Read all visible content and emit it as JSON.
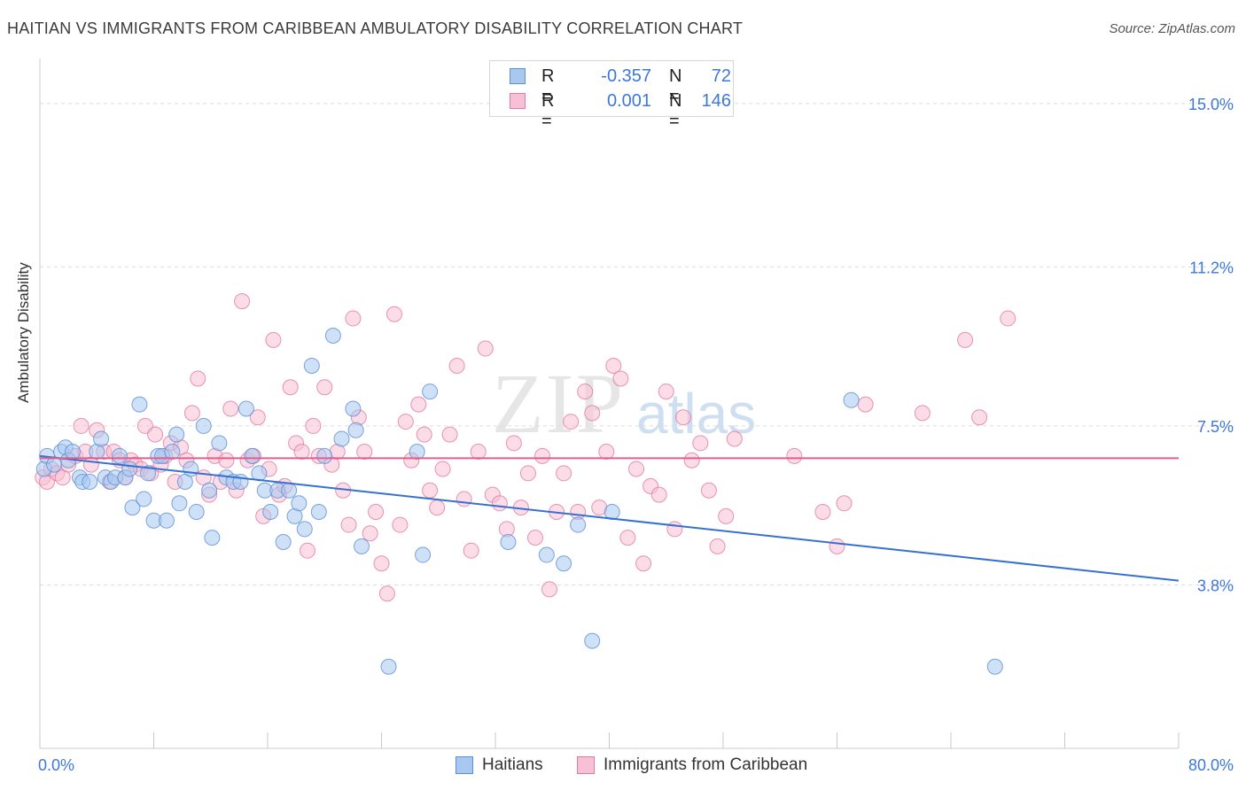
{
  "title": "HAITIAN VS IMMIGRANTS FROM CARIBBEAN AMBULATORY DISABILITY CORRELATION CHART",
  "source": "Source: ZipAtlas.com",
  "watermark": {
    "zip": "ZIP",
    "atlas": "atlas"
  },
  "legend_top": [
    {
      "r_label": "R =",
      "r_value": "-0.357",
      "n_label": "N =",
      "n_value": "72",
      "color": "#a8c8f0",
      "border": "#5b8fd6"
    },
    {
      "r_label": "R =",
      "r_value": "0.001",
      "n_label": "N =",
      "n_value": "146",
      "color": "#f8c0d4",
      "border": "#e07aa0"
    }
  ],
  "chart_data": {
    "type": "scatter",
    "title": "HAITIAN VS IMMIGRANTS FROM CARIBBEAN AMBULATORY DISABILITY CORRELATION CHART",
    "xlabel": "",
    "ylabel": "Ambulatory Disability",
    "xlim": [
      0,
      80
    ],
    "ylim": [
      0,
      15.8
    ],
    "x_tick_labels": [
      "0.0%",
      "80.0%"
    ],
    "y_ticks": [
      3.8,
      7.5,
      11.2,
      15.0
    ],
    "y_tick_labels": [
      "3.8%",
      "7.5%",
      "11.2%",
      "15.0%"
    ],
    "grid": true,
    "legend_position": "bottom",
    "series": [
      {
        "name": "Haitians",
        "color": "#a8c8f0",
        "stroke": "#5b8fd6",
        "trend": {
          "x": [
            0,
            80
          ],
          "y": [
            6.8,
            3.9
          ],
          "color": "#3571d0"
        },
        "points": [
          [
            0.3,
            6.5
          ],
          [
            0.5,
            6.8
          ],
          [
            1.0,
            6.6
          ],
          [
            1.5,
            6.9
          ],
          [
            1.8,
            7.0
          ],
          [
            2.0,
            6.7
          ],
          [
            2.3,
            6.9
          ],
          [
            2.8,
            6.3
          ],
          [
            3.0,
            6.2
          ],
          [
            3.5,
            6.2
          ],
          [
            4.0,
            6.9
          ],
          [
            4.3,
            7.2
          ],
          [
            4.6,
            6.3
          ],
          [
            5.0,
            6.2
          ],
          [
            5.3,
            6.3
          ],
          [
            5.6,
            6.8
          ],
          [
            6.0,
            6.3
          ],
          [
            6.3,
            6.5
          ],
          [
            6.5,
            5.6
          ],
          [
            7.0,
            8.0
          ],
          [
            7.3,
            5.8
          ],
          [
            7.6,
            6.4
          ],
          [
            8.0,
            5.3
          ],
          [
            8.3,
            6.8
          ],
          [
            8.6,
            6.8
          ],
          [
            8.9,
            5.3
          ],
          [
            9.3,
            6.9
          ],
          [
            9.6,
            7.3
          ],
          [
            9.8,
            5.7
          ],
          [
            10.2,
            6.2
          ],
          [
            10.6,
            6.5
          ],
          [
            11.0,
            5.5
          ],
          [
            11.5,
            7.5
          ],
          [
            11.9,
            6.0
          ],
          [
            12.1,
            4.9
          ],
          [
            12.6,
            7.1
          ],
          [
            13.1,
            6.3
          ],
          [
            13.6,
            6.2
          ],
          [
            14.1,
            6.2
          ],
          [
            14.5,
            7.9
          ],
          [
            14.9,
            6.8
          ],
          [
            15.4,
            6.4
          ],
          [
            15.8,
            6.0
          ],
          [
            16.2,
            5.5
          ],
          [
            16.7,
            6.0
          ],
          [
            17.1,
            4.8
          ],
          [
            17.5,
            6.0
          ],
          [
            17.9,
            5.4
          ],
          [
            18.2,
            5.7
          ],
          [
            18.6,
            5.1
          ],
          [
            19.1,
            8.9
          ],
          [
            19.6,
            5.5
          ],
          [
            20.0,
            6.8
          ],
          [
            20.6,
            9.6
          ],
          [
            21.2,
            7.2
          ],
          [
            22.0,
            7.9
          ],
          [
            22.2,
            7.4
          ],
          [
            22.6,
            4.7
          ],
          [
            24.5,
            1.9
          ],
          [
            26.5,
            6.9
          ],
          [
            26.9,
            4.5
          ],
          [
            27.4,
            8.3
          ],
          [
            32.9,
            4.8
          ],
          [
            35.6,
            4.5
          ],
          [
            36.8,
            4.3
          ],
          [
            37.8,
            5.2
          ],
          [
            38.8,
            2.5
          ],
          [
            40.2,
            5.5
          ],
          [
            57.0,
            8.1
          ],
          [
            67.1,
            1.9
          ]
        ]
      },
      {
        "name": "Immigrants from Caribbean",
        "color": "#f8c0d4",
        "stroke": "#e07aa0",
        "trend": {
          "x": [
            0,
            80
          ],
          "y": [
            6.75,
            6.75
          ],
          "color": "#e85c8c"
        },
        "points": [
          [
            0.2,
            6.3
          ],
          [
            0.5,
            6.2
          ],
          [
            0.8,
            6.5
          ],
          [
            1.2,
            6.4
          ],
          [
            1.6,
            6.3
          ],
          [
            2.0,
            6.6
          ],
          [
            2.5,
            6.8
          ],
          [
            2.9,
            7.5
          ],
          [
            3.2,
            6.9
          ],
          [
            3.6,
            6.6
          ],
          [
            4.0,
            7.4
          ],
          [
            4.5,
            6.9
          ],
          [
            4.9,
            6.2
          ],
          [
            5.2,
            6.9
          ],
          [
            5.6,
            6.7
          ],
          [
            6.0,
            6.3
          ],
          [
            6.4,
            6.7
          ],
          [
            6.7,
            6.6
          ],
          [
            7.1,
            6.5
          ],
          [
            7.4,
            7.5
          ],
          [
            7.8,
            6.4
          ],
          [
            8.1,
            7.3
          ],
          [
            8.5,
            6.6
          ],
          [
            8.8,
            6.8
          ],
          [
            9.2,
            7.1
          ],
          [
            9.5,
            6.2
          ],
          [
            9.9,
            7.0
          ],
          [
            10.3,
            6.7
          ],
          [
            10.7,
            7.8
          ],
          [
            11.1,
            8.6
          ],
          [
            11.5,
            6.3
          ],
          [
            11.9,
            5.9
          ],
          [
            12.3,
            6.8
          ],
          [
            12.7,
            6.2
          ],
          [
            13.1,
            6.7
          ],
          [
            13.4,
            7.9
          ],
          [
            13.8,
            6.0
          ],
          [
            14.2,
            10.4
          ],
          [
            14.6,
            6.7
          ],
          [
            15.0,
            6.8
          ],
          [
            15.3,
            7.7
          ],
          [
            15.7,
            5.4
          ],
          [
            16.1,
            6.5
          ],
          [
            16.4,
            9.5
          ],
          [
            16.8,
            5.9
          ],
          [
            17.2,
            6.1
          ],
          [
            17.6,
            8.4
          ],
          [
            18.0,
            7.1
          ],
          [
            18.4,
            6.9
          ],
          [
            18.8,
            4.6
          ],
          [
            19.2,
            7.5
          ],
          [
            19.6,
            6.8
          ],
          [
            20.0,
            8.4
          ],
          [
            20.5,
            6.6
          ],
          [
            20.9,
            6.9
          ],
          [
            21.3,
            6.0
          ],
          [
            21.7,
            5.2
          ],
          [
            22.0,
            10.0
          ],
          [
            22.4,
            7.7
          ],
          [
            22.8,
            6.9
          ],
          [
            23.2,
            5.0
          ],
          [
            23.6,
            5.5
          ],
          [
            24.0,
            4.3
          ],
          [
            24.4,
            3.6
          ],
          [
            24.9,
            10.1
          ],
          [
            25.3,
            5.2
          ],
          [
            25.7,
            7.6
          ],
          [
            26.1,
            6.7
          ],
          [
            26.6,
            8.0
          ],
          [
            27.0,
            7.3
          ],
          [
            27.4,
            6.0
          ],
          [
            27.9,
            5.6
          ],
          [
            28.3,
            6.5
          ],
          [
            28.8,
            7.3
          ],
          [
            29.3,
            8.9
          ],
          [
            29.8,
            5.8
          ],
          [
            30.3,
            4.6
          ],
          [
            30.8,
            6.9
          ],
          [
            31.3,
            9.3
          ],
          [
            31.8,
            5.9
          ],
          [
            32.3,
            5.7
          ],
          [
            32.8,
            5.1
          ],
          [
            33.3,
            7.1
          ],
          [
            33.8,
            5.6
          ],
          [
            34.3,
            6.4
          ],
          [
            34.8,
            4.9
          ],
          [
            35.3,
            6.8
          ],
          [
            35.8,
            3.7
          ],
          [
            36.3,
            5.5
          ],
          [
            36.8,
            6.4
          ],
          [
            37.3,
            7.6
          ],
          [
            37.8,
            5.5
          ],
          [
            38.3,
            8.3
          ],
          [
            38.8,
            7.8
          ],
          [
            39.3,
            5.6
          ],
          [
            39.8,
            6.9
          ],
          [
            40.3,
            8.9
          ],
          [
            40.8,
            8.6
          ],
          [
            41.3,
            4.9
          ],
          [
            41.9,
            6.5
          ],
          [
            42.4,
            4.3
          ],
          [
            42.9,
            6.1
          ],
          [
            43.5,
            5.9
          ],
          [
            44.0,
            8.3
          ],
          [
            44.6,
            5.1
          ],
          [
            45.2,
            7.7
          ],
          [
            45.8,
            6.7
          ],
          [
            46.4,
            7.1
          ],
          [
            47.0,
            6.0
          ],
          [
            47.6,
            4.7
          ],
          [
            48.2,
            5.4
          ],
          [
            48.8,
            7.2
          ],
          [
            53.0,
            6.8
          ],
          [
            55.0,
            5.5
          ],
          [
            56.0,
            4.7
          ],
          [
            56.5,
            5.7
          ],
          [
            58.0,
            8.0
          ],
          [
            62.0,
            7.8
          ],
          [
            65.0,
            9.5
          ],
          [
            66.0,
            7.7
          ],
          [
            68.0,
            10.0
          ]
        ]
      }
    ]
  },
  "y_axis_label": "Ambulatory Disability",
  "x_tick_left": "0.0%",
  "x_tick_right": "80.0%",
  "bottom_legend": [
    {
      "label": "Haitians"
    },
    {
      "label": "Immigrants from Caribbean"
    }
  ]
}
